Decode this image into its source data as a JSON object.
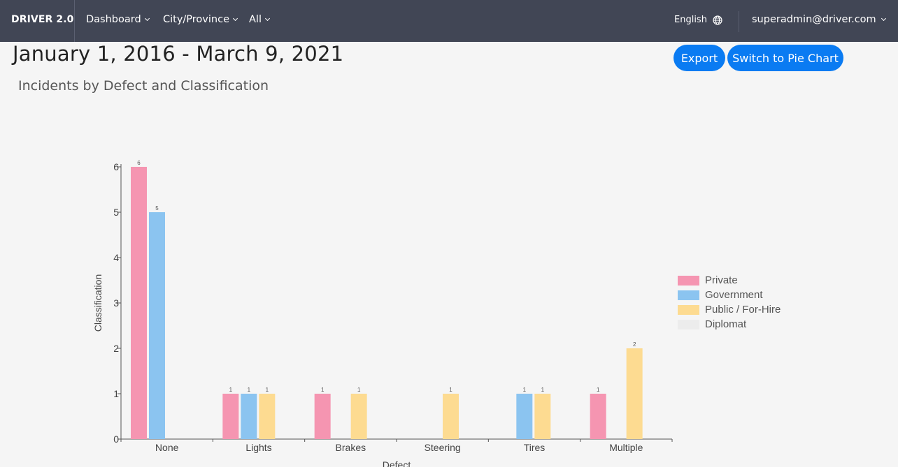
{
  "nav": {
    "brand": "DRIVER 2.0",
    "items": [
      {
        "label": "Dashboard"
      },
      {
        "label": "City/Province"
      },
      {
        "label": "All"
      }
    ],
    "language": "English",
    "user": "superadmin@driver.com"
  },
  "page": {
    "date_range": "January 1, 2016 - March 9, 2021",
    "export_label": "Export",
    "switch_label": "Switch to Pie Chart",
    "subtitle": "Incidents by Defect and Classification"
  },
  "colors": {
    "navbar": "#414655",
    "button": "#0a7bf2"
  },
  "chart_data": {
    "type": "bar",
    "title": "Incidents by Defect and Classification",
    "xlabel": "Defect",
    "ylabel": "Classification",
    "ylim": [
      0,
      6
    ],
    "yticks": [
      0,
      1,
      2,
      3,
      4,
      5,
      6
    ],
    "categories": [
      "None",
      "Lights",
      "Brakes",
      "Steering",
      "Tires",
      "Multiple"
    ],
    "series": [
      {
        "name": "Private",
        "color": "#f595b1",
        "values": [
          6,
          1,
          1,
          0,
          0,
          1
        ]
      },
      {
        "name": "Government",
        "color": "#8bc4f0",
        "values": [
          5,
          1,
          0,
          0,
          1,
          0
        ]
      },
      {
        "name": "Public / For-Hire",
        "color": "#fddb91",
        "values": [
          0,
          1,
          1,
          1,
          1,
          2
        ]
      },
      {
        "name": "Diplomat",
        "color": "#ececec",
        "values": [
          0,
          0,
          0,
          0,
          0,
          0
        ]
      }
    ],
    "legend_position": "right",
    "grid": false
  }
}
